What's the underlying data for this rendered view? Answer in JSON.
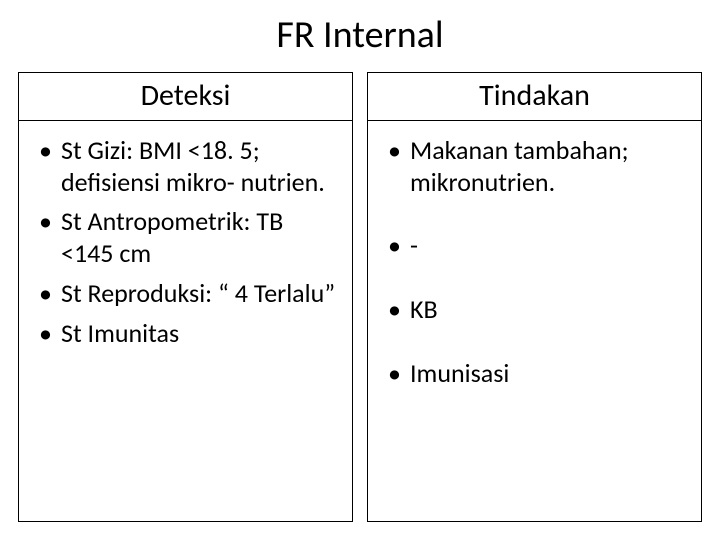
{
  "title": "FR Internal",
  "columns": {
    "left": {
      "header": "Deteksi",
      "items": [
        "St Gizi: BMI <18. 5; defisiensi mikro- nutrien.",
        "St Antropometrik: TB <145 cm",
        "St Reproduksi: “ 4 Terlalu”",
        "St Imunitas"
      ]
    },
    "right": {
      "header": "Tindakan",
      "items": [
        "Makanan tambahan; mikronutrien.",
        "-",
        "KB",
        "Imunisasi"
      ]
    }
  },
  "style": {
    "background": "#ffffff",
    "text_color": "#000000",
    "border_color": "#000000",
    "title_fontsize": 38,
    "header_fontsize": 30,
    "body_fontsize": 26,
    "font_family": "Calibri"
  }
}
